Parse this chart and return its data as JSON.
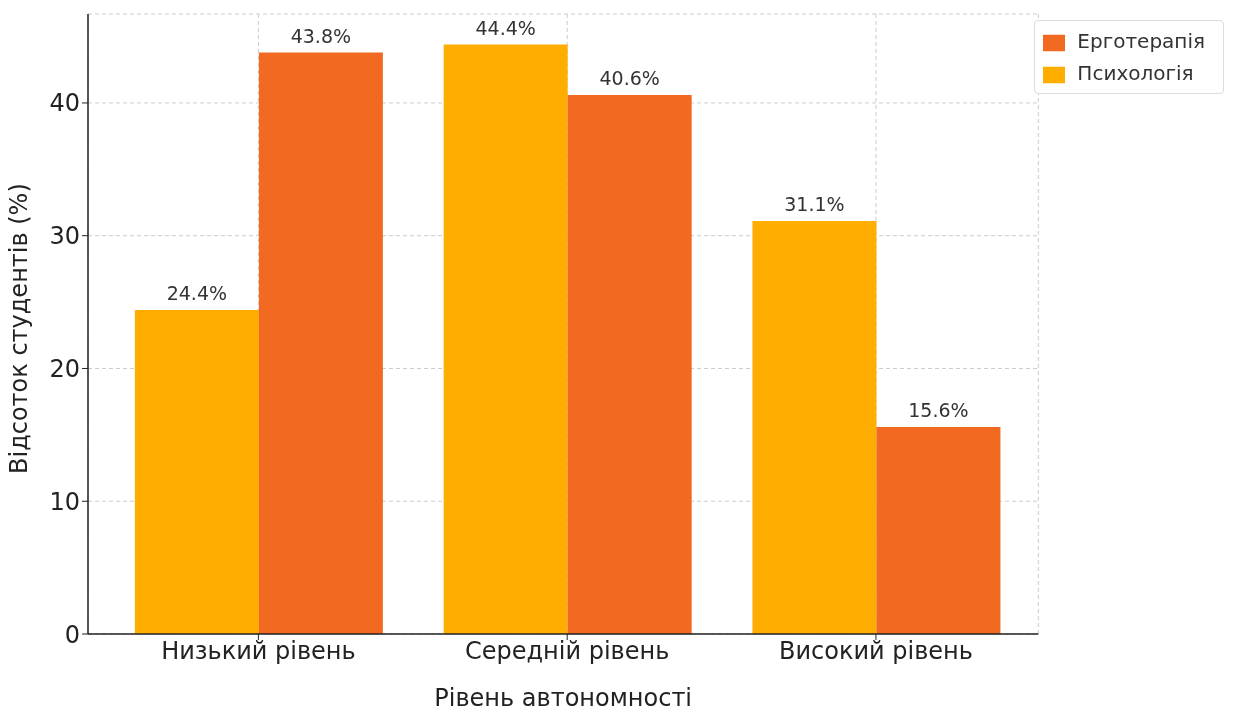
{
  "chart_data": {
    "type": "bar",
    "xlabel": "Рівень автономності",
    "ylabel": "Відсоток студентів (%)",
    "categories": [
      "Низький рівень",
      "Середній рівень",
      "Високий рівень"
    ],
    "series": [
      {
        "name": "Психологія",
        "color": "#ffae00",
        "values": [
          24.4,
          44.4,
          31.1
        ],
        "value_labels": [
          "24.4%",
          "44.4%",
          "31.1%"
        ]
      },
      {
        "name": "Ерготерапія",
        "color": "#f26a21",
        "values": [
          43.8,
          40.6,
          15.6
        ],
        "value_labels": [
          "43.8%",
          "40.6%",
          "15.6%"
        ]
      }
    ],
    "ylim": [
      0,
      46.7
    ],
    "yticks": [
      0,
      10,
      20,
      30,
      40
    ],
    "grid": true,
    "legend": "top right"
  }
}
